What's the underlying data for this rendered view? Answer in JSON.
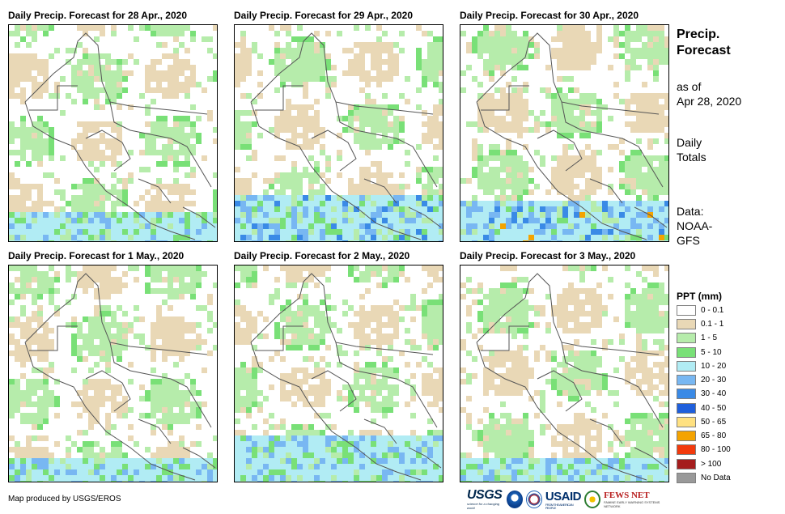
{
  "panels": [
    {
      "title": "Daily Precip. Forecast for 28 Apr., 2020",
      "date": "28 Apr., 2020"
    },
    {
      "title": "Daily Precip. Forecast for 29 Apr., 2020",
      "date": "29 Apr., 2020"
    },
    {
      "title": "Daily Precip. Forecast for 30 Apr., 2020",
      "date": "30 Apr., 2020"
    },
    {
      "title": "Daily Precip. Forecast for 1 May., 2020",
      "date": "1 May., 2020"
    },
    {
      "title": "Daily Precip. Forecast for 2 May., 2020",
      "date": "2 May., 2020"
    },
    {
      "title": "Daily Precip. Forecast for 3 May., 2020",
      "date": "3 May., 2020"
    }
  ],
  "sidebar": {
    "title_line1": "Precip.",
    "title_line2": "Forecast",
    "asof_line1": "as of",
    "asof_line2": "Apr 28, 2020",
    "totals_line1": "Daily",
    "totals_line2": "Totals",
    "data_line1": "Data:",
    "data_line2": "NOAA-",
    "data_line3": "GFS"
  },
  "legend": {
    "title": "PPT (mm)",
    "items": [
      {
        "label": "0 - 0.1",
        "color": "#ffffff"
      },
      {
        "label": "0.1 - 1",
        "color": "#e9d8b6"
      },
      {
        "label": "1 - 5",
        "color": "#b6ecab"
      },
      {
        "label": "5 - 10",
        "color": "#79e077"
      },
      {
        "label": "10 - 20",
        "color": "#b1ecf4"
      },
      {
        "label": "20 - 30",
        "color": "#78b7f2"
      },
      {
        "label": "30 - 40",
        "color": "#3a8ae6"
      },
      {
        "label": "40 - 50",
        "color": "#1f5fdc"
      },
      {
        "label": "50 - 65",
        "color": "#ffe181"
      },
      {
        "label": "65 - 80",
        "color": "#f4a300"
      },
      {
        "label": "80 - 100",
        "color": "#f23a0c"
      },
      {
        "label": "> 100",
        "color": "#a51d1d"
      },
      {
        "label": "No Data",
        "color": "#999999"
      }
    ]
  },
  "footer": {
    "credit": "Map produced by USGS/EROS",
    "logos": {
      "usgs": "USGS",
      "usgs_tagline": "science for a changing world",
      "usaid": "USAID",
      "usaid_tagline": "FROM THE AMERICAN PEOPLE",
      "fews": "FEWS NET",
      "fews_tagline": "FAMINE EARLY WARNING SYSTEMS NETWORK"
    }
  }
}
